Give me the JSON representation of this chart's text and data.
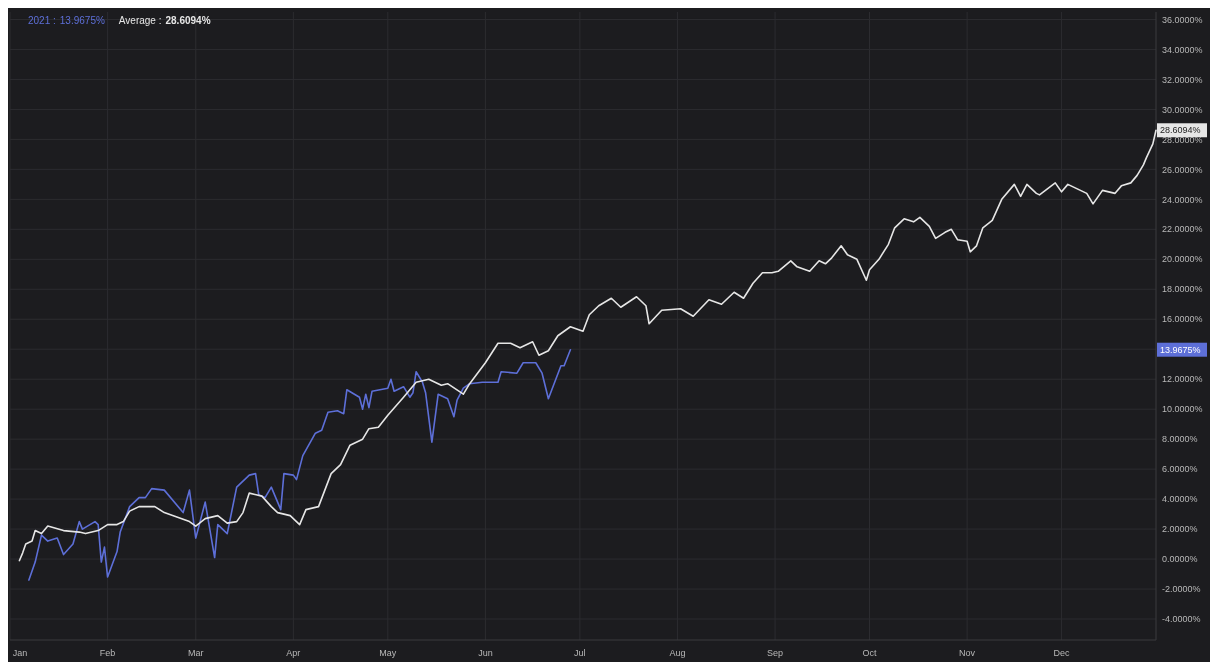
{
  "chart_data": {
    "type": "line",
    "grid": true,
    "annotations": [
      "13.9675%",
      "28.6094%",
      "13.9675%",
      "28.6094%"
    ],
    "marker": "none",
    "line_style": "solid",
    "xlim": [
      "--01-01",
      "--12-31"
    ],
    "xticks": [
      {
        "value": "--01-01",
        "label": "Jan"
      },
      {
        "value": "--02-01",
        "label": "Feb"
      },
      {
        "value": "--03-01",
        "label": "Mar"
      },
      {
        "value": "--04-01",
        "label": "Apr"
      },
      {
        "value": "--05-01",
        "label": "May"
      },
      {
        "value": "--06-01",
        "label": "Jun"
      },
      {
        "value": "--07-01",
        "label": "Jul"
      },
      {
        "value": "--08-01",
        "label": "Aug"
      },
      {
        "value": "--09-01",
        "label": "Sep"
      },
      {
        "value": "--10-01",
        "label": "Oct"
      },
      {
        "value": "--11-01",
        "label": "Nov"
      },
      {
        "value": "--12-01",
        "label": "Dec"
      }
    ],
    "ylim": [
      -5.4,
      36.5
    ],
    "yticks": [
      {
        "value": -4,
        "label": "-4.0000%"
      },
      {
        "value": -2,
        "label": "-2.0000%"
      },
      {
        "value": 0,
        "label": "0.0000%"
      },
      {
        "value": 2,
        "label": "2.0000%"
      },
      {
        "value": 4,
        "label": "4.0000%"
      },
      {
        "value": 6,
        "label": "6.0000%"
      },
      {
        "value": 8,
        "label": "8.0000%"
      },
      {
        "value": 10,
        "label": "10.0000%"
      },
      {
        "value": 12,
        "label": "12.0000%"
      },
      {
        "value": 14,
        "label": null
      },
      {
        "value": 16,
        "label": "16.0000%"
      },
      {
        "value": 18,
        "label": "18.0000%"
      },
      {
        "value": 20,
        "label": "20.0000%"
      },
      {
        "value": 22,
        "label": "22.0000%"
      },
      {
        "value": 24,
        "label": "24.0000%"
      },
      {
        "value": 26,
        "label": "26.0000%"
      },
      {
        "value": 28,
        "label": "28.0000%"
      },
      {
        "value": 30,
        "label": "30.0000%"
      },
      {
        "value": 32,
        "label": "32.0000%"
      },
      {
        "value": 34,
        "label": "34.0000%"
      },
      {
        "value": 36,
        "label": "36.0000%"
      }
    ],
    "series": [
      {
        "name": "2021 :",
        "color": "#5d6fd8",
        "x": [
          "--01-07",
          "--01-09",
          "--01-11",
          "--01-13",
          "--01-16",
          "--01-18",
          "--01-21",
          "--01-23",
          "--01-24",
          "--01-28",
          "--01-29",
          "--01-30",
          "--01-31",
          "--02-01",
          "--02-04",
          "--02-05",
          "--02-08",
          "--02-11",
          "--02-13",
          "--02-15",
          "--02-19",
          "--02-25",
          "--02-27",
          "--03-01",
          "--03-04",
          "--03-07",
          "--03-08",
          "--03-11",
          "--03-14",
          "--03-18",
          "--03-20",
          "--03-21",
          "--03-23",
          "--03-25",
          "--03-28",
          "--03-29",
          "--04-01",
          "--04-02",
          "--04-04",
          "--04-08",
          "--04-10",
          "--04-12",
          "--04-15",
          "--04-17",
          "--04-18",
          "--04-22",
          "--04-23",
          "--04-24",
          "--04-25",
          "--04-26",
          "--05-01",
          "--05-02",
          "--05-03",
          "--05-06",
          "--05-08",
          "--05-09",
          "--05-10",
          "--05-12",
          "--05-13",
          "--05-15",
          "--05-17",
          "--05-20",
          "--05-22",
          "--05-23",
          "--05-25",
          "--05-27",
          "--05-31",
          "--06-05",
          "--06-06",
          "--06-11",
          "--06-13",
          "--06-17",
          "--06-19",
          "--06-21",
          "--06-25",
          "--06-26",
          "--06-28"
        ],
        "values": [
          -1.4,
          -0.2,
          1.6,
          1.2,
          1.4,
          0.3,
          1.0,
          2.5,
          2.0,
          2.5,
          2.3,
          -0.2,
          0.8,
          -1.2,
          0.5,
          1.8,
          3.5,
          4.1,
          4.1,
          4.7,
          4.6,
          3.1,
          4.6,
          1.4,
          3.8,
          0.1,
          2.3,
          1.7,
          4.8,
          5.6,
          5.7,
          4.3,
          4.1,
          4.8,
          3.3,
          5.7,
          5.6,
          5.3,
          6.9,
          8.4,
          8.6,
          9.8,
          9.9,
          9.7,
          11.3,
          10.8,
          10.0,
          11.0,
          10.1,
          11.2,
          11.4,
          12.0,
          11.2,
          11.5,
          10.8,
          11.1,
          12.5,
          11.8,
          11.1,
          7.8,
          11.0,
          10.7,
          9.5,
          10.6,
          11.4,
          11.7,
          11.8,
          11.8,
          12.5,
          12.4,
          13.1,
          13.1,
          12.4,
          10.7,
          12.9,
          12.9,
          13.9675
        ]
      },
      {
        "name": "Average :",
        "color": "#e6e6e6",
        "x": [
          "--01-04",
          "--01-05",
          "--01-06",
          "--01-08",
          "--01-09",
          "--01-11",
          "--01-13",
          "--01-18",
          "--01-23",
          "--01-25",
          "--01-29",
          "--02-01",
          "--02-04",
          "--02-06",
          "--02-08",
          "--02-11",
          "--02-16",
          "--02-19",
          "--02-23",
          "--02-27",
          "--03-01",
          "--03-04",
          "--03-08",
          "--03-11",
          "--03-14",
          "--03-16",
          "--03-18",
          "--03-22",
          "--03-25",
          "--03-27",
          "--03-31",
          "--04-03",
          "--04-05",
          "--04-09",
          "--04-13",
          "--04-16",
          "--04-19",
          "--04-23",
          "--04-25",
          "--04-28",
          "--05-01",
          "--05-06",
          "--05-10",
          "--05-14",
          "--05-18",
          "--05-20",
          "--05-25",
          "--05-27",
          "--06-01",
          "--06-05",
          "--06-09",
          "--06-12",
          "--06-16",
          "--06-18",
          "--06-21",
          "--06-24",
          "--06-28",
          "--07-02",
          "--07-04",
          "--07-07",
          "--07-11",
          "--07-14",
          "--07-19",
          "--07-22",
          "--07-23",
          "--07-27",
          "--08-02",
          "--08-06",
          "--08-11",
          "--08-15",
          "--08-19",
          "--08-22",
          "--08-25",
          "--08-28",
          "--08-31",
          "--09-02",
          "--09-06",
          "--09-08",
          "--09-12",
          "--09-15",
          "--09-17",
          "--09-19",
          "--09-22",
          "--09-24",
          "--09-27",
          "--09-30",
          "--10-01",
          "--10-04",
          "--10-07",
          "--10-09",
          "--10-12",
          "--10-15",
          "--10-17",
          "--10-20",
          "--10-22",
          "--10-25",
          "--10-27",
          "--10-29",
          "--11-01",
          "--11-02",
          "--11-04",
          "--11-06",
          "--11-09",
          "--11-12",
          "--11-16",
          "--11-18",
          "--11-20",
          "--11-23",
          "--11-24",
          "--11-29",
          "--12-01",
          "--12-03",
          "--12-06",
          "--12-09",
          "--12-11",
          "--12-14",
          "--12-18",
          "--12-20",
          "--12-23",
          "--12-25",
          "--12-27",
          "--12-28",
          "--12-30",
          "--12-31"
        ],
        "values": [
          -0.1,
          0.4,
          1.0,
          1.2,
          1.9,
          1.7,
          2.2,
          1.9,
          1.8,
          1.7,
          1.9,
          2.3,
          2.3,
          2.5,
          3.2,
          3.5,
          3.5,
          3.1,
          2.8,
          2.5,
          2.2,
          2.7,
          2.9,
          2.4,
          2.5,
          3.1,
          4.4,
          4.2,
          3.5,
          3.1,
          2.9,
          2.3,
          3.3,
          3.5,
          5.7,
          6.3,
          7.6,
          8.0,
          8.7,
          8.8,
          9.6,
          10.8,
          11.8,
          12.0,
          11.6,
          11.7,
          11.0,
          11.7,
          13.1,
          14.4,
          14.4,
          14.1,
          14.5,
          13.6,
          13.9,
          14.9,
          15.5,
          15.2,
          16.3,
          16.9,
          17.4,
          16.8,
          17.5,
          16.9,
          15.7,
          16.6,
          16.7,
          16.2,
          17.3,
          17.0,
          17.8,
          17.4,
          18.4,
          19.1,
          19.1,
          19.2,
          19.9,
          19.5,
          19.2,
          19.9,
          19.7,
          20.1,
          20.9,
          20.3,
          20.0,
          18.6,
          19.3,
          20.0,
          21.0,
          22.1,
          22.7,
          22.5,
          22.8,
          22.2,
          21.4,
          21.8,
          22.0,
          21.3,
          21.2,
          20.5,
          20.9,
          22.1,
          22.6,
          24.0,
          25.0,
          24.2,
          25.0,
          24.4,
          24.3,
          25.1,
          24.5,
          25.0,
          24.7,
          24.4,
          23.7,
          24.6,
          24.4,
          24.9,
          25.1,
          25.6,
          26.3,
          26.8,
          27.7,
          28.6094
        ]
      }
    ]
  }
}
